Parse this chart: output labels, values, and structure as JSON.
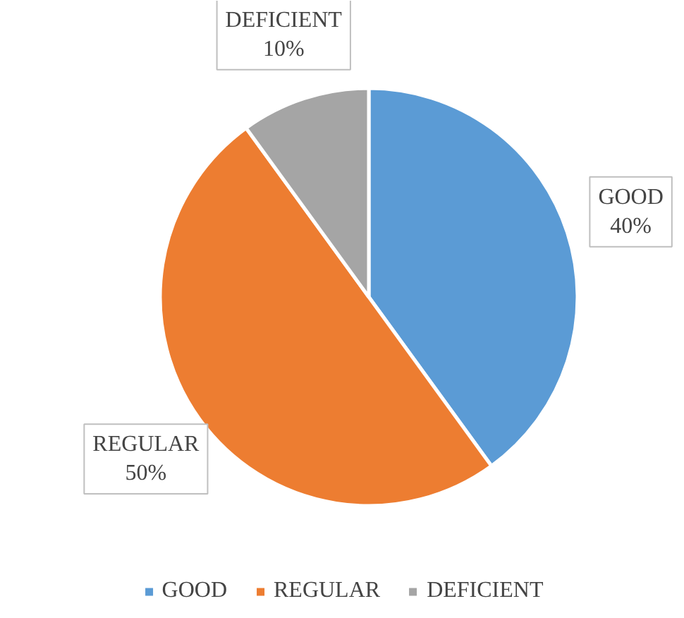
{
  "chart_data": {
    "type": "pie",
    "categories": [
      "GOOD",
      "REGULAR",
      "DEFICIENT"
    ],
    "values": [
      40,
      50,
      10
    ],
    "value_labels": [
      "40%",
      "50%",
      "10%"
    ],
    "colors": [
      "#5b9bd5",
      "#ed7d31",
      "#a5a5a5"
    ],
    "legend": "bottom"
  }
}
